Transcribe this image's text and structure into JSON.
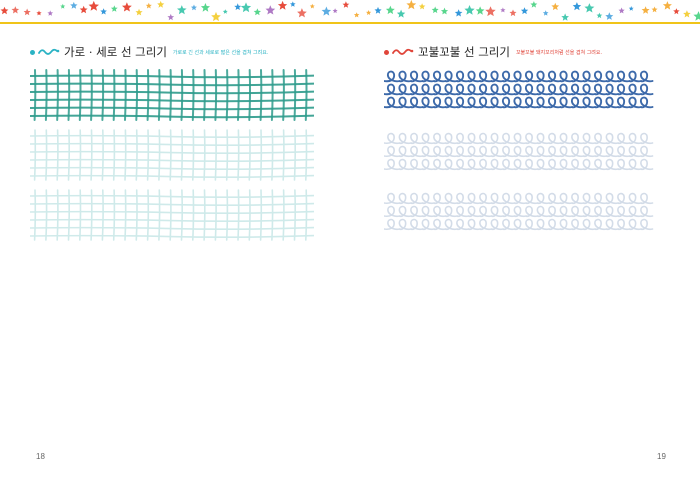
{
  "header": {
    "border_color": "#f0c419"
  },
  "left": {
    "title": "가로 · 세로 선 그리기",
    "hint": "가로로 긴 선과 세로로 짧은 선을 겹쳐 그려요.",
    "accent": "#2bb3c4",
    "line_color": "#2a9d8f",
    "rows": [
      {
        "type": "grid",
        "state": "sample",
        "color": "#2e9b8c"
      },
      {
        "type": "grid",
        "state": "trace",
        "color": "#cfeaea"
      },
      {
        "type": "grid",
        "state": "trace",
        "color": "#cfeaea"
      }
    ],
    "page_number": "18"
  },
  "right": {
    "title": "꼬불꼬불 선 그리기",
    "hint": "꼬불꼬불 돼지꼬리처럼 선을 겹쳐 그려요.",
    "accent": "#e0453a",
    "line_color": "#3b6fb0",
    "rows": [
      {
        "type": "loops",
        "state": "sample",
        "color": "#3d6aaa"
      },
      {
        "type": "loops",
        "state": "trace",
        "color": "#d3dce8"
      },
      {
        "type": "loops",
        "state": "trace",
        "color": "#d3dce8"
      }
    ],
    "page_number": "19"
  }
}
